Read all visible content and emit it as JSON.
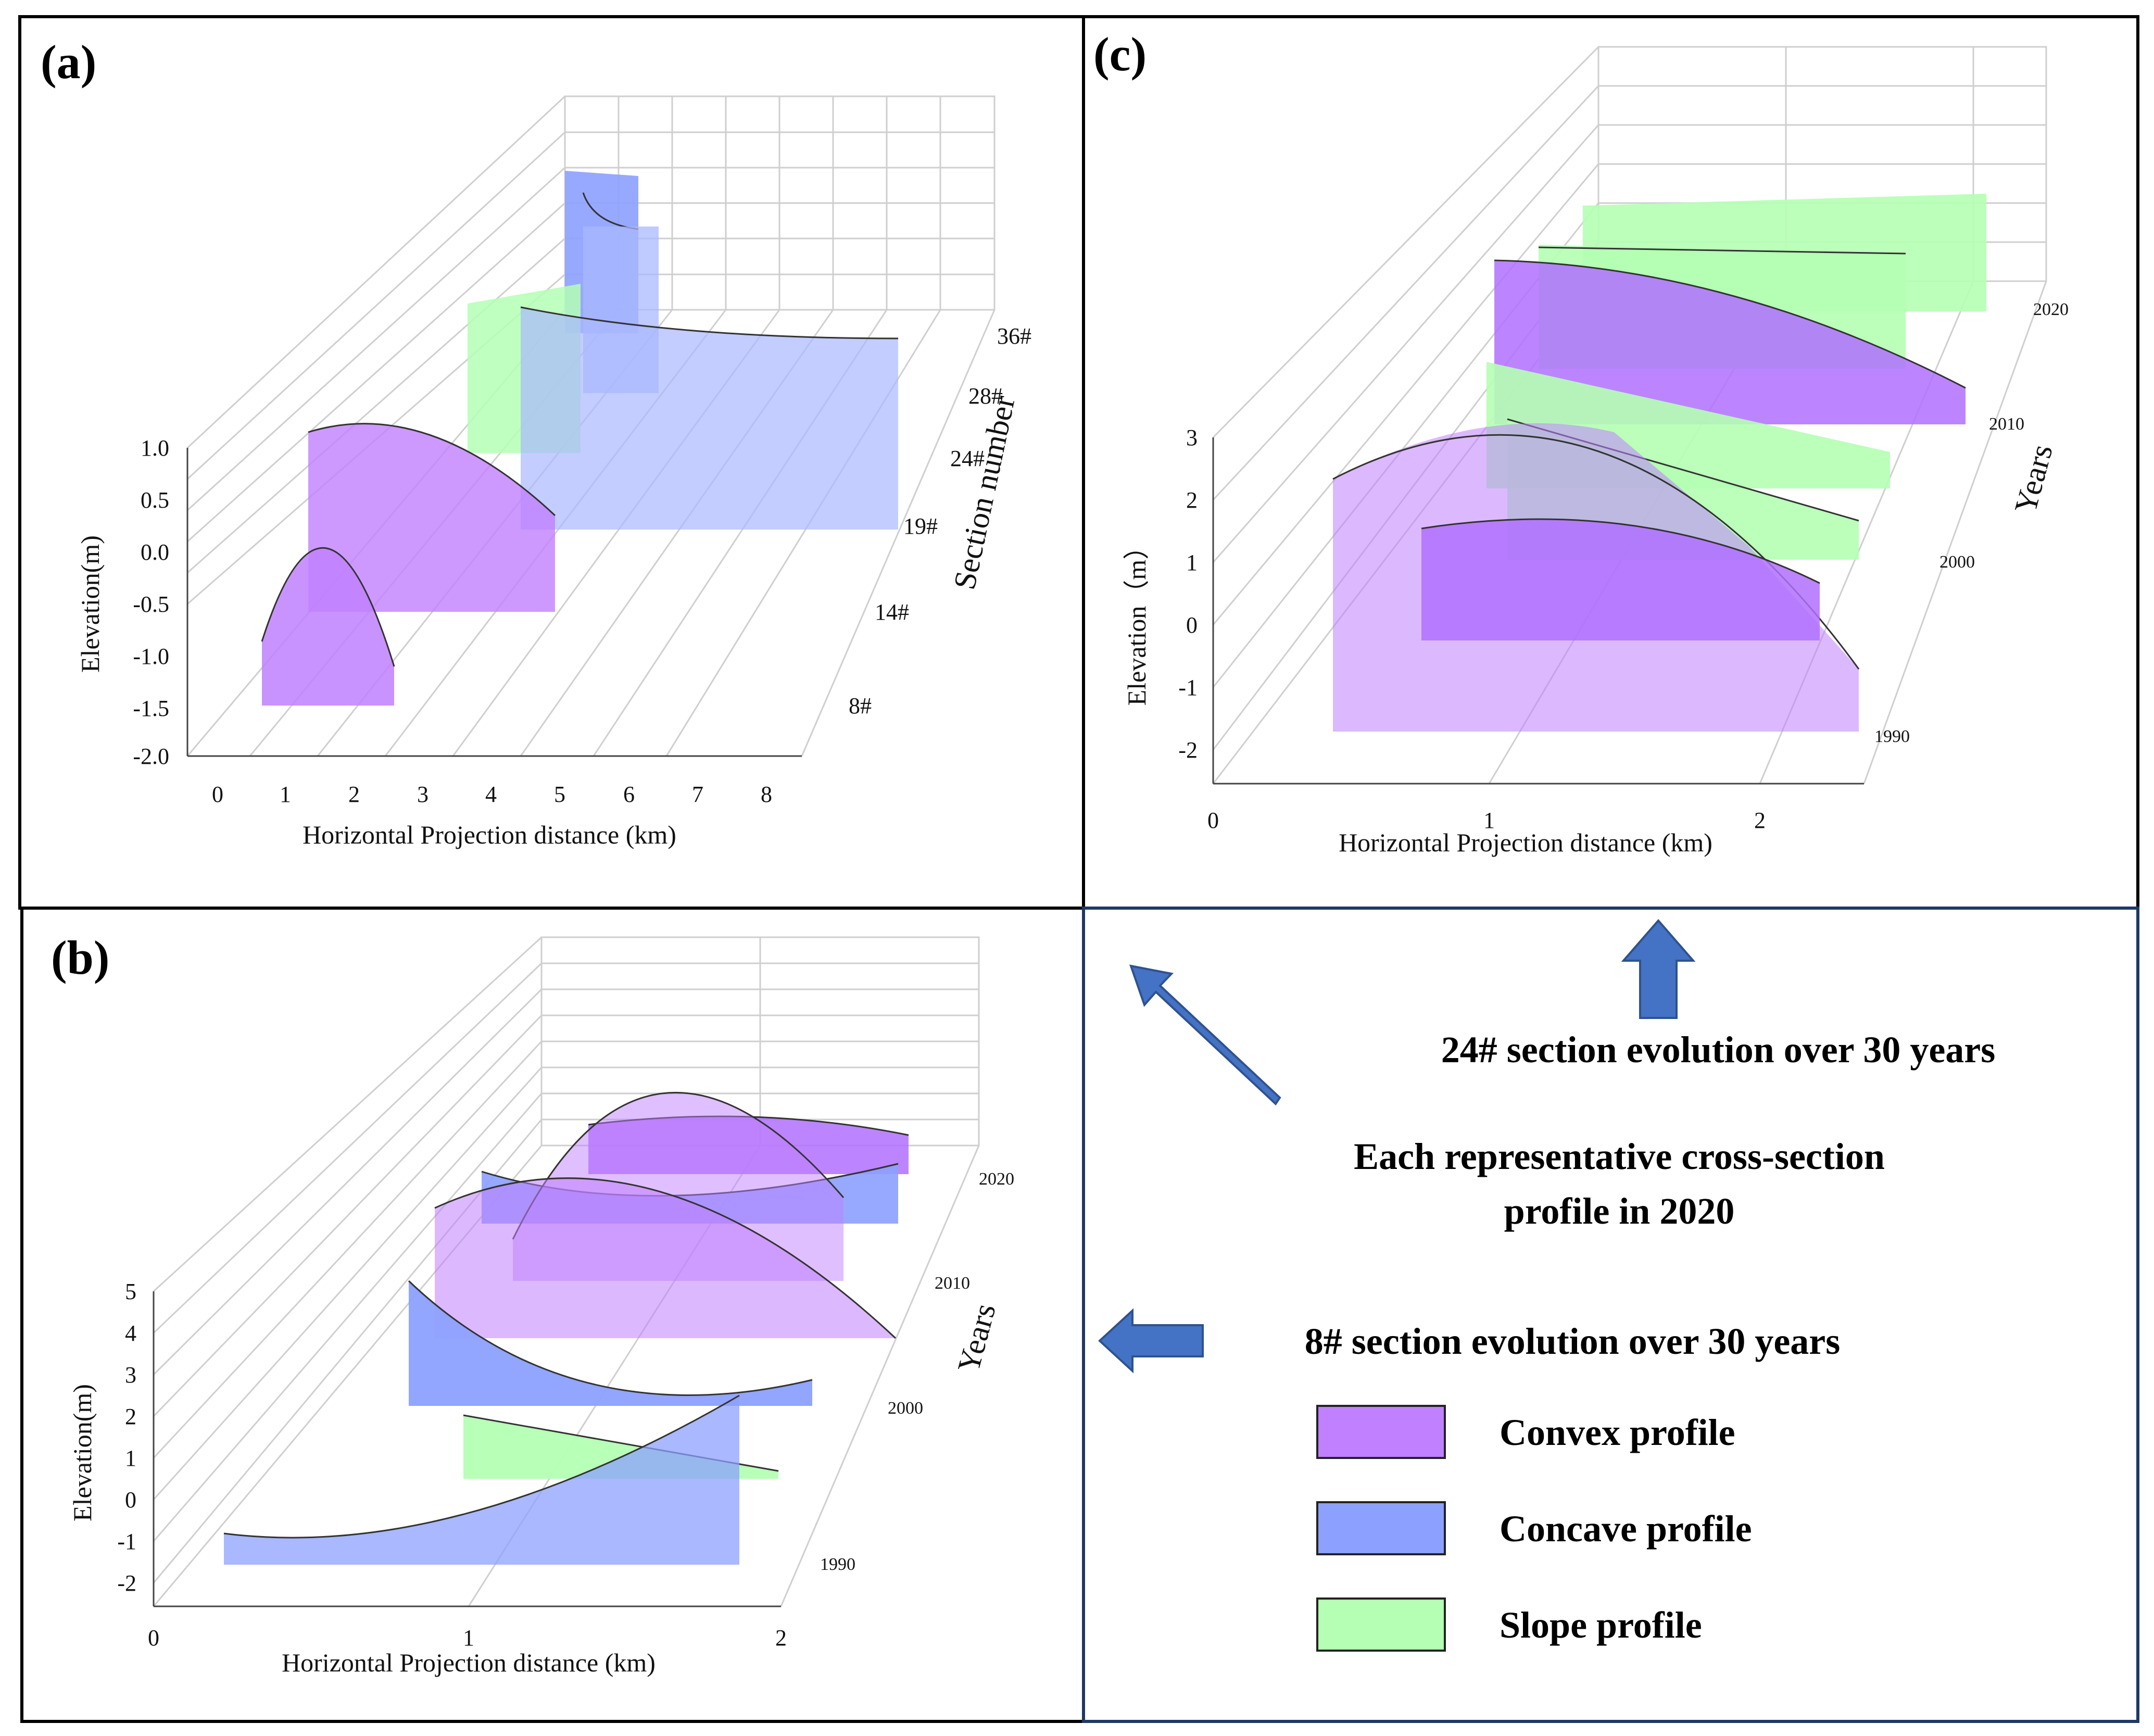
{
  "colors": {
    "convex": "#c080ff",
    "concave": "#8ca0ff",
    "slope": "#b4ffb4",
    "arrow": "#4472c4",
    "frame": "#000000",
    "frame_blue": "#1f3864"
  },
  "panels": {
    "a": "(a)",
    "b": "(b)",
    "c": "(c)"
  },
  "chart_data": [
    {
      "id": "a",
      "type": "3d-area",
      "title": "Each representative cross-section profile in 2020",
      "xlabel": "Horizontal Projection distance (km)",
      "ylabel": "Elevation(m)",
      "zlabel": "Section number",
      "x_ticks": [
        "0",
        "1",
        "2",
        "3",
        "4",
        "5",
        "6",
        "7",
        "8"
      ],
      "y_ticks": [
        "-2.0",
        "-1.5",
        "-1.0",
        "-0.5",
        "0.0",
        "0.5",
        "1.0"
      ],
      "z_ticks": [
        "8#",
        "14#",
        "19#",
        "24#",
        "28#",
        "36#"
      ],
      "series": [
        {
          "section": "8#",
          "profile": "Convex",
          "x_range": [
            0.6,
            2.5
          ]
        },
        {
          "section": "14#",
          "profile": "Convex",
          "x_range": [
            1.0,
            4.7
          ]
        },
        {
          "section": "19#",
          "profile": "Concave",
          "x_range": [
            1.3,
            7.2
          ]
        },
        {
          "section": "24#",
          "profile": "Slope",
          "x_range": [
            0.3,
            2.0
          ]
        },
        {
          "section": "28#",
          "profile": "Concave",
          "x_range": [
            0.8,
            2.5
          ]
        },
        {
          "section": "36#",
          "profile": "Concave",
          "x_range": [
            0.2,
            1.3
          ]
        }
      ]
    },
    {
      "id": "b",
      "type": "3d-area",
      "title": "8# section evolution over 30 years",
      "xlabel": "Horizontal Projection distance (km)",
      "ylabel": "Elevation(m)",
      "zlabel": "Years",
      "x_ticks": [
        "0",
        "1",
        "2"
      ],
      "y_ticks": [
        "-2",
        "-1",
        "0",
        "1",
        "2",
        "3",
        "4",
        "5"
      ],
      "z_ticks": [
        "1990",
        "2000",
        "2010",
        "2020"
      ],
      "series": [
        {
          "year": "1990",
          "profile": "Concave"
        },
        {
          "year": "1995",
          "profile": "Slope"
        },
        {
          "year": "2000",
          "profile": "Concave"
        },
        {
          "year": "2005",
          "profile": "Convex"
        },
        {
          "year": "2010",
          "profile": "Convex"
        },
        {
          "year": "2015",
          "profile": "Concave"
        },
        {
          "year": "2020",
          "profile": "Convex"
        }
      ]
    },
    {
      "id": "c",
      "type": "3d-area",
      "title": "24# section evolution over 30 years",
      "xlabel": "Horizontal Projection distance (km)",
      "ylabel": "Elevation（m）",
      "zlabel": "Years",
      "x_ticks": [
        "0",
        "1",
        "2"
      ],
      "y_ticks": [
        "-2",
        "-1",
        "0",
        "1",
        "2",
        "3"
      ],
      "z_ticks": [
        "1990",
        "2000",
        "2010",
        "2020"
      ],
      "series": [
        {
          "year": "1990",
          "profile": "Convex"
        },
        {
          "year": "1995",
          "profile": "Convex"
        },
        {
          "year": "2000",
          "profile": "Slope"
        },
        {
          "year": "2005",
          "profile": "Slope"
        },
        {
          "year": "2010",
          "profile": "Convex"
        },
        {
          "year": "2015",
          "profile": "Slope"
        },
        {
          "year": "2020",
          "profile": "Slope"
        }
      ]
    }
  ],
  "annotations": {
    "c_caption": "24# section evolution over 30 years",
    "a_caption_line1": "Each representative cross-section",
    "a_caption_line2": "profile in 2020",
    "b_caption": "8# section evolution over 30 years"
  },
  "legend": [
    {
      "label": "Convex profile",
      "color": "#c080ff"
    },
    {
      "label": "Concave profile",
      "color": "#8ca0ff"
    },
    {
      "label": "Slope profile",
      "color": "#b4ffb4"
    }
  ]
}
